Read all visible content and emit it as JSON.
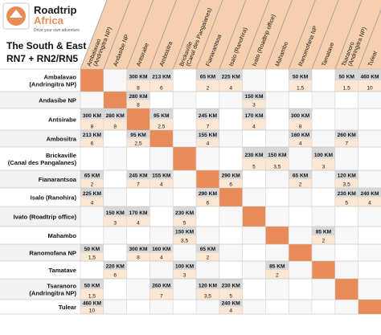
{
  "logo": {
    "line1": "Roadtrip",
    "line2": "Africa",
    "tagline": "Drive your own adventure"
  },
  "title": {
    "line1": "The South & East",
    "line2": "RN7 + RN2/RN5"
  },
  "colors": {
    "accent": "#e98b58",
    "headerBg": "#f6cfae",
    "headerLine": "#9a9a9a",
    "grayCell": "#d8d8d8",
    "lightCell": "#fce7d5",
    "rowBg": "#dcdcdc",
    "text": "#111111"
  },
  "places": [
    {
      "col": [
        "Ambalavao",
        "(Andringitra NP)"
      ],
      "row": [
        "Ambalavao",
        "(Andringitra NP)"
      ]
    },
    {
      "col": [
        "Andasibe NP"
      ],
      "row": [
        "Andasibe NP"
      ]
    },
    {
      "col": [
        "Antsirabe"
      ],
      "row": [
        "Antsirabe"
      ]
    },
    {
      "col": [
        "Ambositra"
      ],
      "row": [
        "Ambositra"
      ]
    },
    {
      "col": [
        "Brickaville",
        "(Canal des Pangalanes)"
      ],
      "row": [
        "Brickaville",
        "(Canal des Pangalanes)"
      ]
    },
    {
      "col": [
        "Fianarantsoa"
      ],
      "row": [
        "Fianarantsoa"
      ]
    },
    {
      "col": [
        "Isalo (Ranohira)"
      ],
      "row": [
        "Isalo (Ranohira)"
      ]
    },
    {
      "col": [
        "Ivato (Roadtrip office)"
      ],
      "row": [
        "Ivato (Roadtrip office)"
      ]
    },
    {
      "col": [
        "Mahambo"
      ],
      "row": [
        "Mahambo"
      ]
    },
    {
      "col": [
        "Ranomofana NP"
      ],
      "row": [
        "Ranomofana NP"
      ]
    },
    {
      "col": [
        "Tamatave"
      ],
      "row": [
        "Tamatave"
      ]
    },
    {
      "col": [
        "Tsaranoro",
        "(Andringitra NP)"
      ],
      "row": [
        "Tsaranoro",
        "(Andringitra NP)"
      ]
    },
    {
      "col": [
        "Tulear"
      ],
      "row": [
        "Tulear"
      ]
    }
  ],
  "cells": [
    [
      null,
      null,
      [
        "300 KM",
        "8"
      ],
      [
        "213 KM",
        "6"
      ],
      null,
      [
        "65 KM",
        "2"
      ],
      [
        "225 KM",
        "4"
      ],
      null,
      null,
      [
        "50 KM",
        "1,5"
      ],
      null,
      [
        "50 KM",
        "1,5"
      ],
      [
        "460 KM",
        "10"
      ]
    ],
    [
      null,
      null,
      [
        "280 KM",
        "8"
      ],
      null,
      null,
      null,
      null,
      [
        "150 KM",
        "3"
      ],
      null,
      null,
      null,
      null,
      null
    ],
    [
      [
        "300 KM",
        "8"
      ],
      [
        "280 KM",
        "8"
      ],
      null,
      [
        "95 KM",
        "2,5"
      ],
      null,
      [
        "245 KM",
        "7"
      ],
      null,
      [
        "170 KM",
        "4"
      ],
      null,
      [
        "300 KM",
        "8"
      ],
      null,
      null,
      null
    ],
    [
      [
        "213 KM",
        "6"
      ],
      null,
      [
        "95 KM",
        "2,5"
      ],
      null,
      null,
      [
        "155 KM",
        "4"
      ],
      null,
      null,
      null,
      [
        "160 KM",
        "4"
      ],
      null,
      [
        "260 KM",
        "7"
      ],
      null
    ],
    [
      null,
      null,
      null,
      null,
      null,
      null,
      null,
      [
        "230 KM",
        "5"
      ],
      [
        "150 KM",
        "3,5"
      ],
      null,
      [
        "100 KM",
        "3"
      ],
      null,
      null
    ],
    [
      [
        "65 KM",
        "2"
      ],
      null,
      [
        "245 KM",
        "7"
      ],
      [
        "155 KM",
        "4"
      ],
      null,
      null,
      [
        "290 KM",
        "6"
      ],
      null,
      null,
      [
        "65 KM",
        "2"
      ],
      null,
      [
        "120 KM",
        "3,5"
      ],
      null
    ],
    [
      [
        "225 KM",
        "4"
      ],
      null,
      null,
      null,
      null,
      [
        "290 KM",
        "6"
      ],
      null,
      null,
      null,
      null,
      null,
      [
        "230 KM",
        "5"
      ],
      [
        "240 KM",
        "4"
      ]
    ],
    [
      null,
      [
        "150 KM",
        "3"
      ],
      [
        "170 KM",
        "4"
      ],
      null,
      [
        "230 KM",
        "5"
      ],
      null,
      null,
      null,
      null,
      null,
      null,
      null,
      null
    ],
    [
      null,
      null,
      null,
      null,
      [
        "150 KM",
        "3,5"
      ],
      null,
      null,
      null,
      null,
      null,
      [
        "85 KM",
        "2"
      ],
      null,
      null
    ],
    [
      [
        "50 KM",
        "1,5"
      ],
      null,
      [
        "300 KM",
        "8"
      ],
      [
        "160 KM",
        "4"
      ],
      null,
      [
        "65 KM",
        "2"
      ],
      null,
      null,
      null,
      null,
      null,
      null,
      null
    ],
    [
      null,
      [
        "220 KM",
        "6"
      ],
      null,
      null,
      [
        "100 KM",
        "3"
      ],
      null,
      null,
      null,
      [
        "85 KM",
        "2"
      ],
      null,
      null,
      null,
      null
    ],
    [
      [
        "50 KM",
        "1,5"
      ],
      null,
      null,
      [
        "260 KM",
        "7"
      ],
      null,
      [
        "120 KM",
        "3,5"
      ],
      [
        "230 KM",
        "5"
      ],
      null,
      null,
      null,
      null,
      null,
      null
    ],
    [
      [
        "460 KM",
        "10"
      ],
      null,
      null,
      null,
      null,
      null,
      [
        "240 KM",
        "4"
      ],
      null,
      null,
      null,
      null,
      null,
      null
    ]
  ]
}
